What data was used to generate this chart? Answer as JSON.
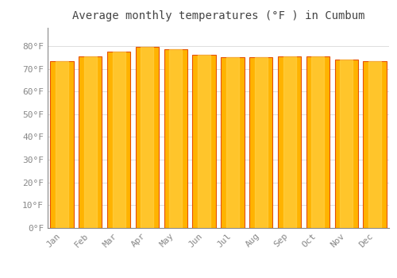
{
  "title": "Average monthly temperatures (°F ) in Cumbum",
  "months": [
    "Jan",
    "Feb",
    "Mar",
    "Apr",
    "May",
    "Jun",
    "Jul",
    "Aug",
    "Sep",
    "Oct",
    "Nov",
    "Dec"
  ],
  "values": [
    73.5,
    75.5,
    77.5,
    79.5,
    78.5,
    76.0,
    75.0,
    75.2,
    75.5,
    75.5,
    74.2,
    73.5
  ],
  "bar_color_main": "#FFB300",
  "bar_color_light": "#FFD54F",
  "bar_color_edge": "#E65100",
  "background_color": "#FFFFFF",
  "grid_color": "#DDDDDD",
  "ylim": [
    0,
    88
  ],
  "ytick_values": [
    0,
    10,
    20,
    30,
    40,
    50,
    60,
    70,
    80
  ],
  "title_fontsize": 10,
  "tick_fontsize": 8,
  "tick_color": "#888888",
  "title_color": "#444444"
}
